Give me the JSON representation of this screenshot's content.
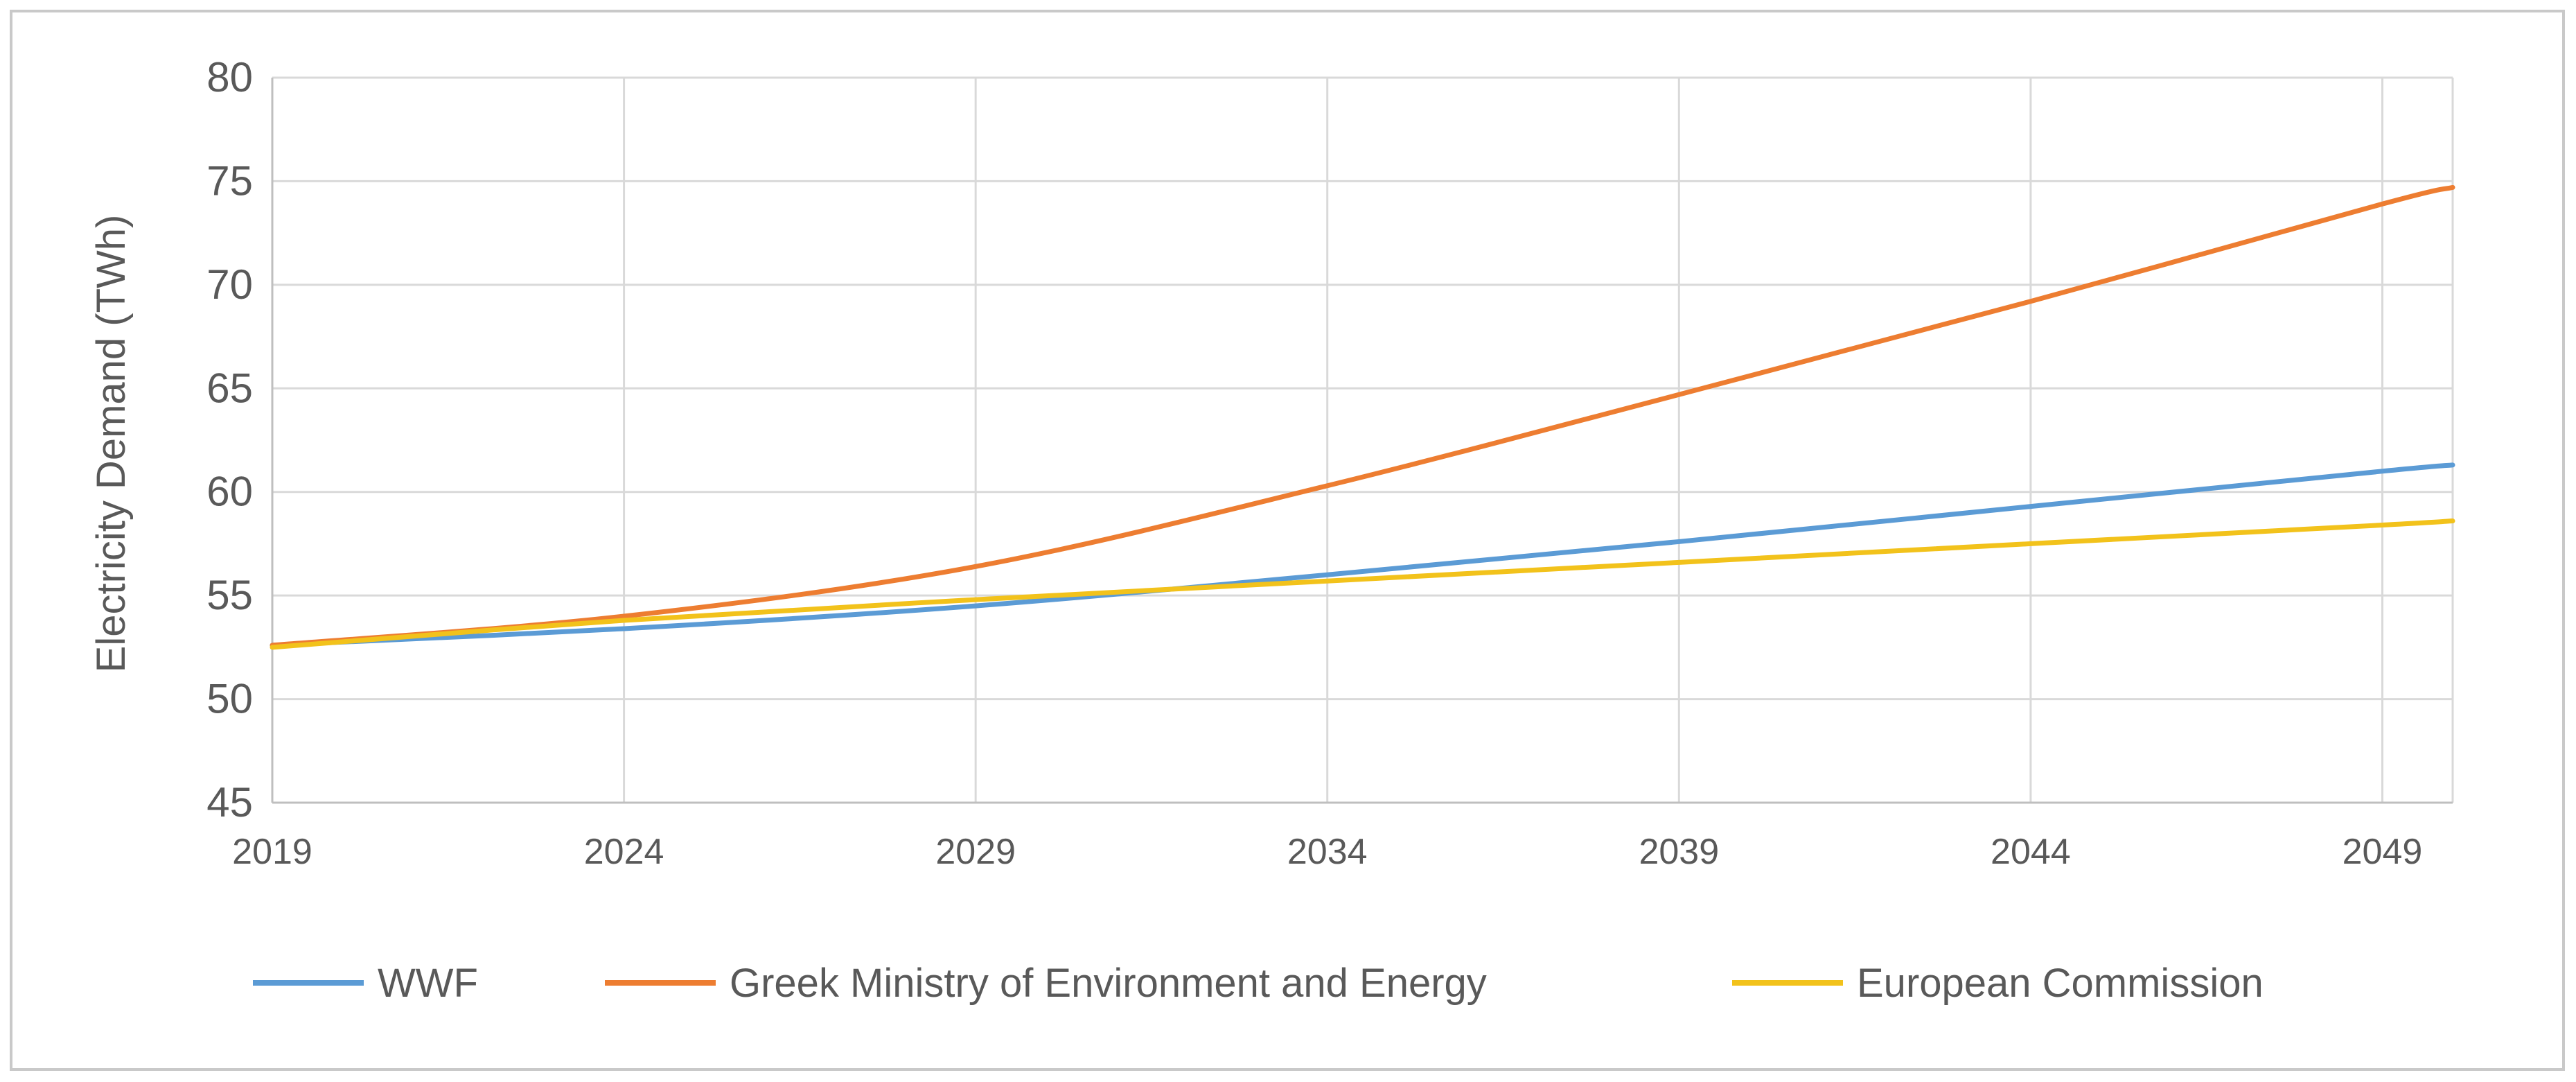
{
  "chart_data": {
    "type": "line",
    "title": "",
    "xlabel": "",
    "ylabel": "Electricity Demand (TWh)",
    "ylim": [
      45,
      80
    ],
    "yticks": [
      45,
      50,
      55,
      60,
      65,
      70,
      75,
      80
    ],
    "xlim": [
      2019,
      2050
    ],
    "xticks": [
      2019,
      2024,
      2029,
      2034,
      2039,
      2044,
      2049
    ],
    "grid": true,
    "legend_position": "bottom",
    "x": [
      2019,
      2024,
      2029,
      2034,
      2039,
      2044,
      2049,
      2050
    ],
    "series": [
      {
        "name": "WWF",
        "color": "#5b9bd5",
        "values": [
          52.6,
          53.4,
          54.5,
          56.0,
          57.6,
          59.3,
          61.0,
          61.3
        ]
      },
      {
        "name": "Greek Ministry of Environment and Energy",
        "color": "#ed7d31",
        "values": [
          52.6,
          54.0,
          56.4,
          60.3,
          64.7,
          69.2,
          73.9,
          74.7
        ]
      },
      {
        "name": "European Commission",
        "color": "#f2c21b",
        "values": [
          52.5,
          53.8,
          54.8,
          55.7,
          56.6,
          57.5,
          58.4,
          58.6
        ]
      }
    ]
  }
}
